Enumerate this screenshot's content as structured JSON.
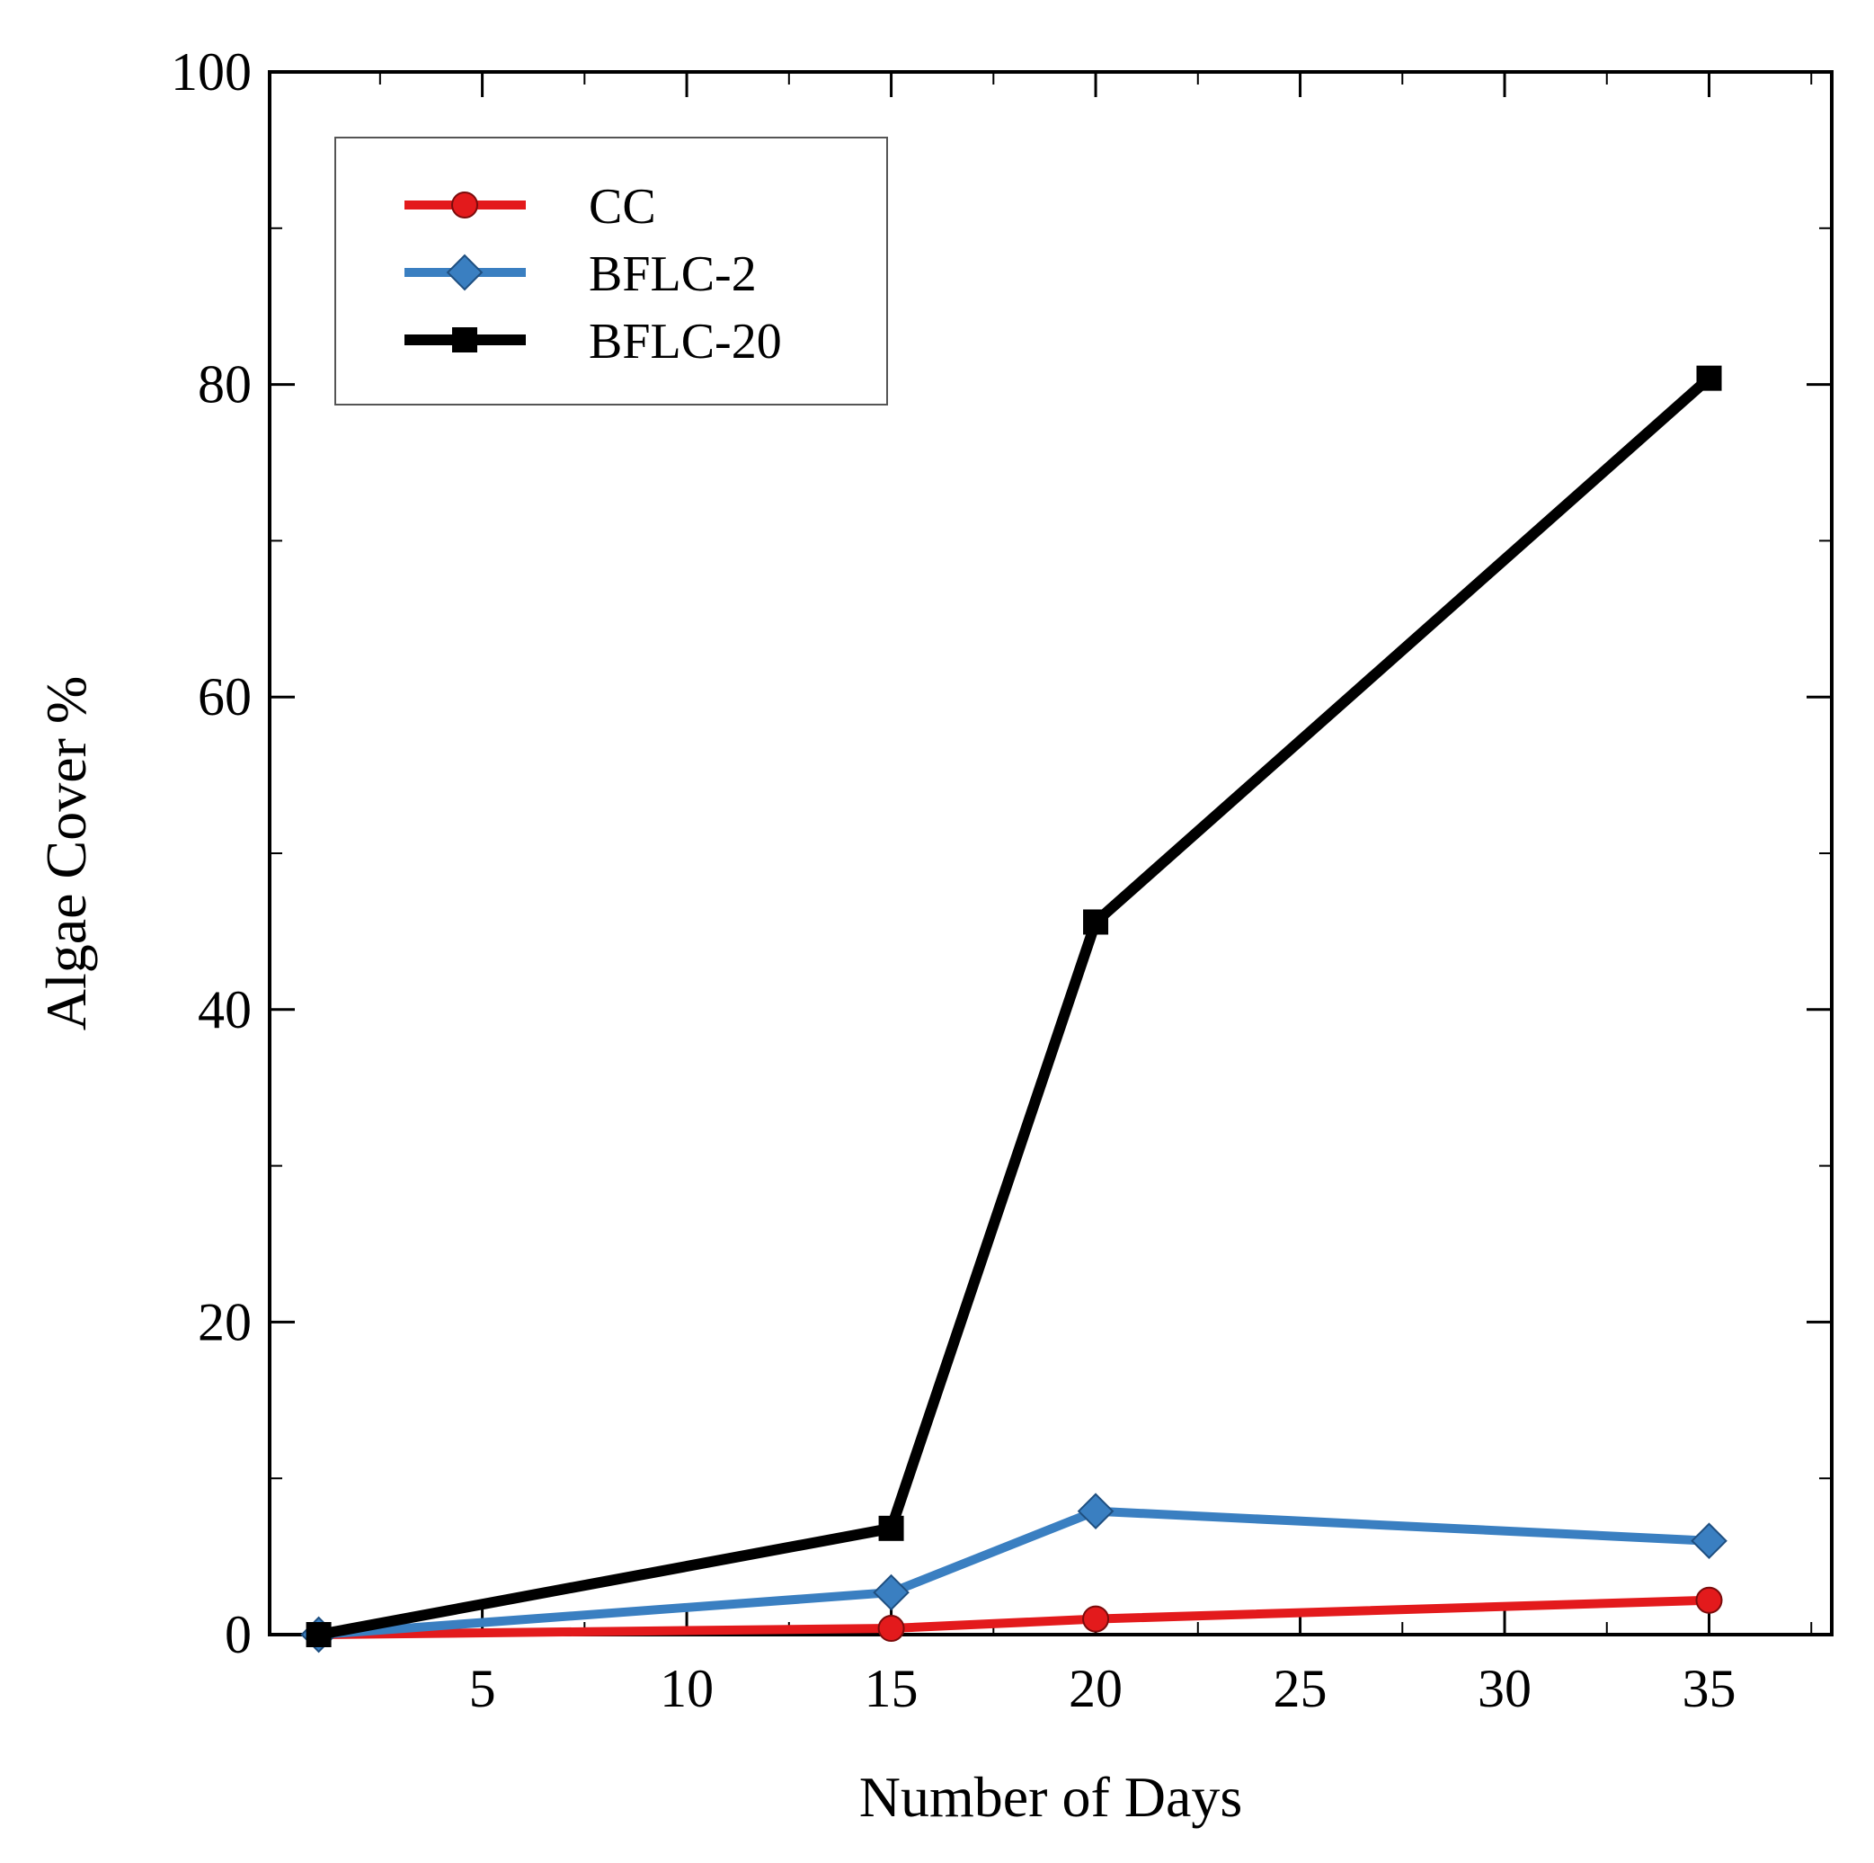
{
  "chart_data": {
    "type": "line",
    "title": "",
    "xlabel": "Number of Days",
    "ylabel": "Algae Cover %",
    "xlim": [
      -0.2,
      38
    ],
    "ylim": [
      0,
      100
    ],
    "xticks": [
      5,
      10,
      15,
      20,
      25,
      30,
      35
    ],
    "yticks": [
      0,
      20,
      40,
      60,
      80,
      100
    ],
    "grid": false,
    "legend_position": "top-left",
    "series": [
      {
        "name": "CC",
        "color": "#e31a1c",
        "marker": "circle",
        "x": [
          1,
          15,
          20,
          35
        ],
        "y": [
          0,
          0.4,
          1.0,
          2.2
        ]
      },
      {
        "name": "BFLC-2",
        "color": "#3a7fc1",
        "marker": "diamond",
        "x": [
          1,
          15,
          20,
          35
        ],
        "y": [
          0,
          2.7,
          7.9,
          6.0
        ]
      },
      {
        "name": "BFLC-20",
        "color": "#000000",
        "marker": "square",
        "x": [
          1,
          15,
          20,
          35
        ],
        "y": [
          0,
          6.8,
          45.6,
          80.4
        ]
      }
    ]
  }
}
